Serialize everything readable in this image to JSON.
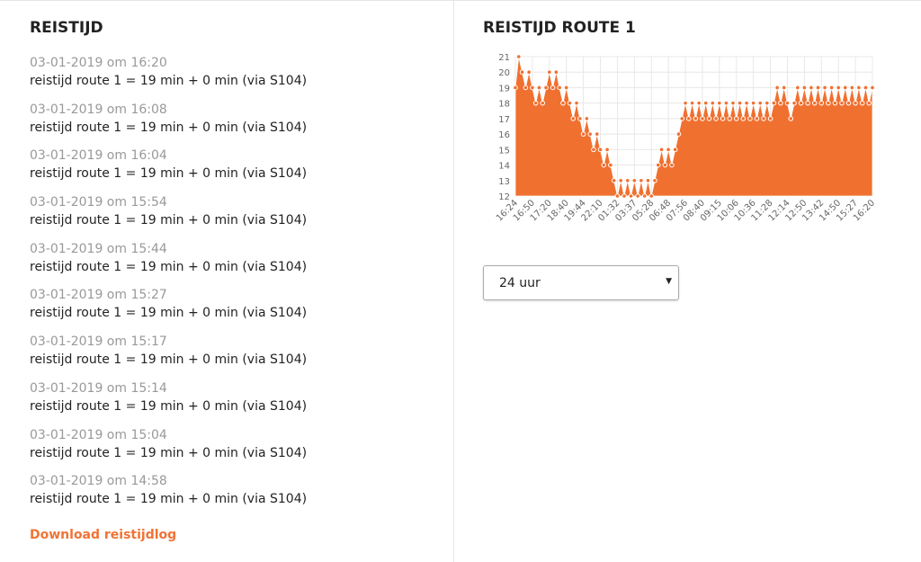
{
  "left": {
    "title": "REISTIJD",
    "entries": [
      {
        "time": "03-01-2019 om 16:20",
        "text": "reistijd route 1 = 19 min + 0 min (via S104)"
      },
      {
        "time": "03-01-2019 om 16:08",
        "text": "reistijd route 1 = 19 min + 0 min (via S104)"
      },
      {
        "time": "03-01-2019 om 16:04",
        "text": "reistijd route 1 = 19 min + 0 min (via S104)"
      },
      {
        "time": "03-01-2019 om 15:54",
        "text": "reistijd route 1 = 19 min + 0 min (via S104)"
      },
      {
        "time": "03-01-2019 om 15:44",
        "text": "reistijd route 1 = 19 min + 0 min (via S104)"
      },
      {
        "time": "03-01-2019 om 15:27",
        "text": "reistijd route 1 = 19 min + 0 min (via S104)"
      },
      {
        "time": "03-01-2019 om 15:17",
        "text": "reistijd route 1 = 19 min + 0 min (via S104)"
      },
      {
        "time": "03-01-2019 om 15:14",
        "text": "reistijd route 1 = 19 min + 0 min (via S104)"
      },
      {
        "time": "03-01-2019 om 15:04",
        "text": "reistijd route 1 = 19 min + 0 min (via S104)"
      },
      {
        "time": "03-01-2019 om 14:58",
        "text": "reistijd route 1 = 19 min + 0 min (via S104)"
      }
    ],
    "download": "Download reistijdlog"
  },
  "right": {
    "title": "REISTIJD ROUTE 1",
    "select_value": "24 uur"
  },
  "chart_data": {
    "type": "area",
    "color": "#f07030",
    "ylim": [
      12,
      21
    ],
    "grid": true,
    "xticks": [
      "16:24",
      "16:50",
      "17:20",
      "18:40",
      "19:44",
      "22:10",
      "01:32",
      "03:37",
      "05:28",
      "06:48",
      "07:56",
      "08:40",
      "09:15",
      "10:06",
      "10:36",
      "11:28",
      "12:14",
      "12:50",
      "13:42",
      "14:50",
      "15:27",
      "16:20"
    ],
    "values": [
      19,
      21,
      20,
      19,
      20,
      19,
      18,
      19,
      18,
      19,
      20,
      19,
      20,
      19,
      18,
      19,
      18,
      17,
      18,
      17,
      16,
      17,
      16,
      15,
      16,
      15,
      14,
      15,
      14,
      13,
      12,
      13,
      12,
      13,
      12,
      13,
      12,
      13,
      12,
      13,
      12,
      13,
      14,
      15,
      14,
      15,
      14,
      15,
      16,
      17,
      18,
      17,
      18,
      17,
      18,
      17,
      18,
      17,
      18,
      17,
      18,
      17,
      18,
      17,
      18,
      17,
      18,
      17,
      18,
      17,
      18,
      17,
      18,
      17,
      18,
      17,
      18,
      19,
      18,
      19,
      18,
      17,
      18,
      19,
      18,
      19,
      18,
      19,
      18,
      19,
      18,
      19,
      18,
      19,
      18,
      19,
      18,
      19,
      18,
      19,
      18,
      19,
      18,
      19,
      18,
      19
    ]
  }
}
